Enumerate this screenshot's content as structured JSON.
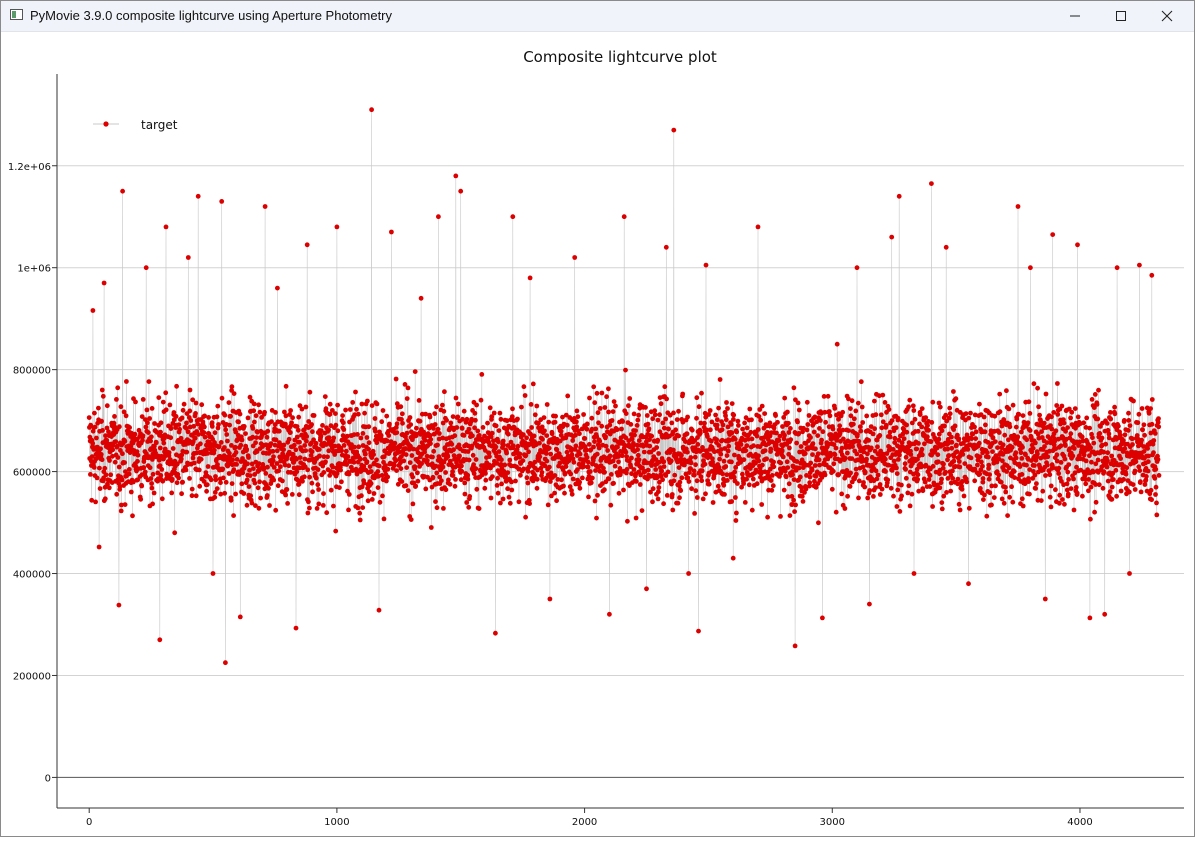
{
  "window": {
    "title": "PyMovie 3.9.0 composite lightcurve using Aperture Photometry",
    "icons": {
      "app": "app-window-icon",
      "minimize": "minimize-icon",
      "maximize": "maximize-icon",
      "close": "close-icon"
    }
  },
  "chart_data": {
    "type": "scatter",
    "title": "Composite lightcurve plot",
    "xlabel": "",
    "ylabel": "",
    "xlim": [
      -130,
      4420
    ],
    "ylim": [
      -60000,
      1380000
    ],
    "x_ticks": [
      0,
      1000,
      2000,
      3000,
      4000
    ],
    "x_tick_labels": [
      "0",
      "1000",
      "2000",
      "3000",
      "4000"
    ],
    "y_ticks": [
      0,
      200000,
      400000,
      600000,
      800000,
      1000000,
      1200000
    ],
    "y_tick_labels": [
      "0",
      "200000",
      "400000",
      "600000",
      "800000",
      "1e+06",
      "1.2e+06"
    ],
    "grid": true,
    "legend_position": "top-left",
    "colors": {
      "points": "#dd0000",
      "line": "#c8c8c8",
      "grid": "#d3d3d3"
    },
    "series": [
      {
        "name": "target",
        "x_start": 0,
        "x_step": 1,
        "n_points": 4320,
        "typical_mean": 640000,
        "typical_range": [
          350000,
          1000000
        ],
        "values": [
          [
            15,
            916000
          ],
          [
            40,
            452000
          ],
          [
            60,
            970000
          ],
          [
            120,
            338000
          ],
          [
            135,
            1150000
          ],
          [
            170,
            560000
          ],
          [
            230,
            1000000
          ],
          [
            285,
            270000
          ],
          [
            310,
            1080000
          ],
          [
            345,
            480000
          ],
          [
            400,
            1020000
          ],
          [
            440,
            1140000
          ],
          [
            500,
            400000
          ],
          [
            535,
            1130000
          ],
          [
            550,
            225000
          ],
          [
            610,
            315000
          ],
          [
            710,
            1120000
          ],
          [
            760,
            960000
          ],
          [
            835,
            293000
          ],
          [
            880,
            1045000
          ],
          [
            1000,
            1080000
          ],
          [
            1140,
            1310000
          ],
          [
            1170,
            328000
          ],
          [
            1220,
            1070000
          ],
          [
            1340,
            940000
          ],
          [
            1410,
            1100000
          ],
          [
            1480,
            1180000
          ],
          [
            1500,
            1150000
          ],
          [
            1640,
            283000
          ],
          [
            1710,
            1100000
          ],
          [
            1780,
            980000
          ],
          [
            1860,
            350000
          ],
          [
            1960,
            1020000
          ],
          [
            2000,
            690000
          ],
          [
            2100,
            320000
          ],
          [
            2160,
            1100000
          ],
          [
            2250,
            370000
          ],
          [
            2330,
            1040000
          ],
          [
            2360,
            1270000
          ],
          [
            2420,
            400000
          ],
          [
            2460,
            287000
          ],
          [
            2490,
            1005000
          ],
          [
            2600,
            430000
          ],
          [
            2700,
            1080000
          ],
          [
            2850,
            258000
          ],
          [
            2960,
            313000
          ],
          [
            3020,
            850000
          ],
          [
            3100,
            1000000
          ],
          [
            3150,
            340000
          ],
          [
            3240,
            1060000
          ],
          [
            3270,
            1140000
          ],
          [
            3330,
            400000
          ],
          [
            3400,
            1165000
          ],
          [
            3460,
            1040000
          ],
          [
            3550,
            380000
          ],
          [
            3700,
            560000
          ],
          [
            3750,
            1120000
          ],
          [
            3800,
            1000000
          ],
          [
            3860,
            350000
          ],
          [
            3890,
            1065000
          ],
          [
            3990,
            1045000
          ],
          [
            4040,
            313000
          ],
          [
            4100,
            320000
          ],
          [
            4150,
            1000000
          ],
          [
            4200,
            400000
          ],
          [
            4240,
            1005000
          ],
          [
            4290,
            985000
          ],
          [
            4310,
            515000
          ]
        ]
      }
    ]
  }
}
